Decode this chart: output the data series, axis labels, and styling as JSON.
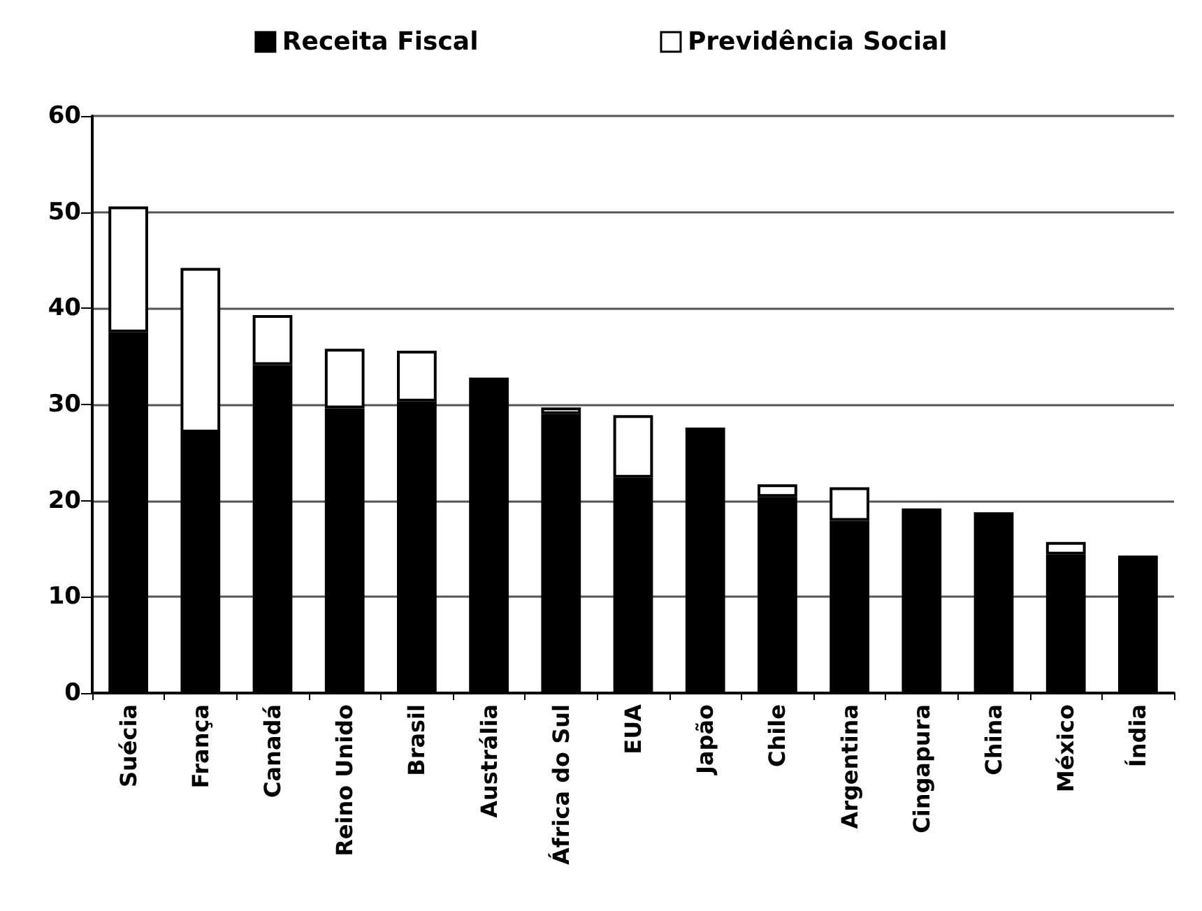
{
  "chart_data": {
    "type": "bar",
    "stacked": true,
    "categories": [
      "Suécia",
      "França",
      "Canadá",
      "Reino Unido",
      "Brasil",
      "Austrália",
      "África do Sul",
      "EUA",
      "Japão",
      "Chile",
      "Argentina",
      "Cingapura",
      "China",
      "México",
      "Índia"
    ],
    "series": [
      {
        "name": "Receita Fiscal",
        "color": "#000000",
        "values": [
          37.5,
          27.1,
          34.1,
          29.6,
          30.3,
          32.8,
          29.0,
          22.4,
          27.6,
          20.4,
          17.9,
          19.2,
          18.8,
          14.4,
          14.3
        ]
      },
      {
        "name": "Previdência Social",
        "color": "#ffffff",
        "values": [
          13.1,
          17.1,
          5.2,
          6.2,
          5.3,
          null,
          0.7,
          6.5,
          null,
          1.3,
          3.5,
          null,
          null,
          1.3,
          null
        ]
      }
    ],
    "ylim": [
      0,
      60
    ],
    "yticks": [
      0,
      10,
      20,
      30,
      40,
      50,
      60
    ],
    "grid": "y",
    "legend": "top"
  }
}
